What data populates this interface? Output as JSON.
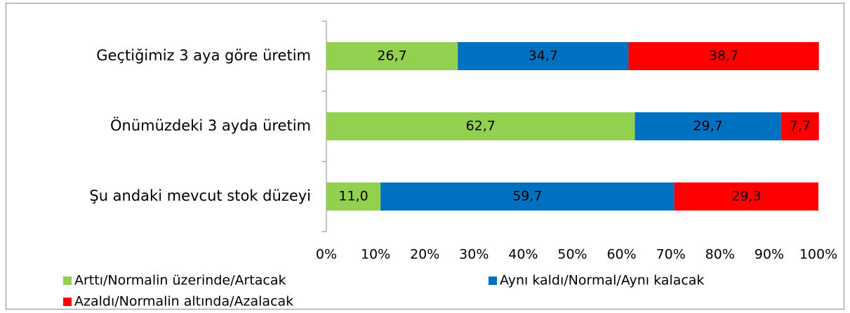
{
  "chart_data": {
    "type": "stacked_bar_horizontal",
    "categories": [
      "Geçtiğimiz 3 aya göre üretim",
      "Önümüzdeki 3 ayda üretim",
      "Şu andaki mevcut stok düzeyi"
    ],
    "series": [
      {
        "name": "Arttı/Normalin üzerinde/Artacak",
        "color": "#92d050",
        "values": [
          26.7,
          62.7,
          11.0
        ],
        "value_labels": [
          "26,7",
          "62,7",
          "11,0"
        ]
      },
      {
        "name": "Aynı kaldı/Normal/Aynı kalacak",
        "color": "#0070c0",
        "values": [
          34.7,
          29.7,
          59.7
        ],
        "value_labels": [
          "34,7",
          "29,7",
          "59,7"
        ]
      },
      {
        "name": "Azaldı/Normalin altında/Azalacak",
        "color": "#ff0000",
        "values": [
          38.7,
          7.7,
          29.3
        ],
        "value_labels": [
          "38,7",
          "7,7",
          "29,3"
        ]
      }
    ],
    "xlim": [
      0,
      100
    ],
    "xticks": [
      {
        "value": 0,
        "label": "0%"
      },
      {
        "value": 10,
        "label": "10%"
      },
      {
        "value": 20,
        "label": "20%"
      },
      {
        "value": 30,
        "label": "30%"
      },
      {
        "value": 40,
        "label": "40%"
      },
      {
        "value": 50,
        "label": "50%"
      },
      {
        "value": 60,
        "label": "60%"
      },
      {
        "value": 70,
        "label": "70%"
      },
      {
        "value": 80,
        "label": "80%"
      },
      {
        "value": 90,
        "label": "90%"
      },
      {
        "value": 100,
        "label": "100%"
      }
    ],
    "legend": "bottom"
  }
}
